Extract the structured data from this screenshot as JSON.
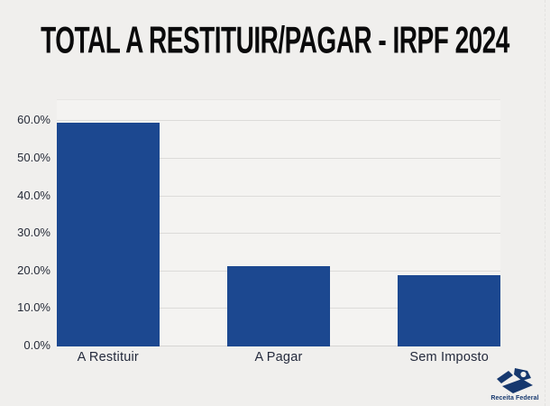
{
  "page": {
    "background": "#f0efed"
  },
  "chart_data": {
    "type": "bar",
    "title": "TOTAL A RESTITUIR/PAGAR - IRPF 2024",
    "categories": [
      "A Restituir",
      "A Pagar",
      "Sem Imposto"
    ],
    "values": [
      59.6,
      21.5,
      19.0
    ],
    "unit": "%",
    "xlabel": "",
    "ylabel": "",
    "ylim": [
      0,
      65.6
    ],
    "yticks": [
      0,
      10,
      20,
      30,
      40,
      50,
      60
    ],
    "ytick_labels": [
      "0.0%",
      "10.0%",
      "20.0%",
      "30.0%",
      "40.0%",
      "50.0%",
      "60.0%"
    ],
    "grid": true,
    "legend": false,
    "bar_color": "#1c4890"
  },
  "footer": {
    "logo_label": "Receita Federal"
  },
  "colors": {
    "bar": "#1c4890",
    "logo_navy": "#16386e",
    "title_text": "#0a0a0b",
    "axis_text": "#262b38",
    "gridline": "#dcdbd9",
    "plot_background": "#f4f3f1"
  }
}
